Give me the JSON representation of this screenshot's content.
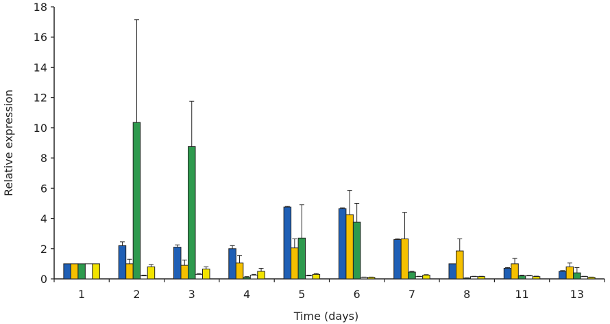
{
  "chart_data": {
    "type": "bar",
    "title": "",
    "xlabel": "Time (days)",
    "ylabel": "Relative expression",
    "ylim": [
      0,
      18
    ],
    "yticks": [
      0,
      2,
      4,
      6,
      8,
      10,
      12,
      14,
      16,
      18
    ],
    "categories": [
      "1",
      "2",
      "3",
      "4",
      "5",
      "6",
      "7",
      "8",
      "11",
      "13"
    ],
    "grid": false,
    "legend": "none",
    "series": [
      {
        "color": "#1f5fb5",
        "values": [
          1.0,
          2.2,
          2.1,
          2.0,
          4.75,
          4.65,
          2.6,
          1.0,
          0.7,
          0.5
        ],
        "errors": [
          0.0,
          0.25,
          0.15,
          0.2,
          0.05,
          0.05,
          0.05,
          0.0,
          0.05,
          0.05
        ]
      },
      {
        "color": "#f5c000",
        "values": [
          1.0,
          1.0,
          0.9,
          1.05,
          2.05,
          4.25,
          2.65,
          1.85,
          1.0,
          0.8
        ],
        "errors": [
          0.0,
          0.3,
          0.35,
          0.5,
          0.6,
          1.6,
          1.75,
          0.8,
          0.35,
          0.25
        ]
      },
      {
        "color": "#2e9a4e",
        "values": [
          1.0,
          10.35,
          8.75,
          0.1,
          2.7,
          3.75,
          0.45,
          0.05,
          0.2,
          0.4
        ],
        "errors": [
          0.0,
          6.8,
          3.0,
          0.05,
          2.2,
          1.25,
          0.05,
          0.02,
          0.05,
          0.35
        ]
      },
      {
        "color": "#ffffff",
        "values": [
          1.0,
          0.2,
          0.3,
          0.25,
          0.2,
          0.1,
          0.15,
          0.15,
          0.2,
          0.15
        ],
        "errors": [
          0.0,
          0.05,
          0.05,
          0.05,
          0.05,
          0.02,
          0.02,
          0.02,
          0.03,
          0.02
        ]
      },
      {
        "color": "#f2e300",
        "values": [
          1.0,
          0.8,
          0.65,
          0.5,
          0.3,
          0.1,
          0.25,
          0.15,
          0.15,
          0.1
        ],
        "errors": [
          0.0,
          0.15,
          0.15,
          0.2,
          0.05,
          0.02,
          0.03,
          0.02,
          0.03,
          0.02
        ]
      }
    ]
  }
}
